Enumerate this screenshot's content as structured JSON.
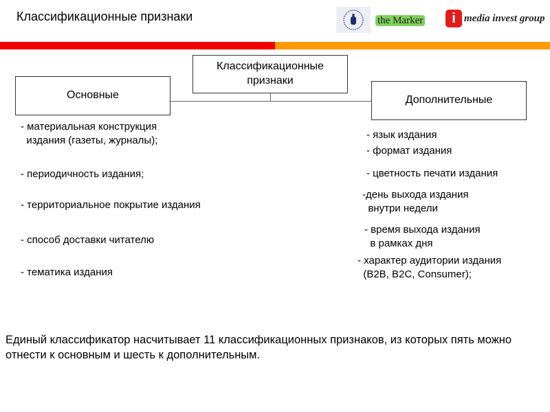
{
  "header": {
    "title": "Классификационные признаки"
  },
  "logos": {
    "marker": "the Marker",
    "mig_mark": "i",
    "mig": "media invest group"
  },
  "colors": {
    "bar_left": "#f20000",
    "bar_right": "#ff9a00"
  },
  "diagram": {
    "root": "Классификационные\nпризнаки",
    "left": "Основные",
    "right": "Дополнительные"
  },
  "left_items": [
    "- материальная конструкция\n  издания (газеты, журналы);",
    "- периодичность издания;",
    "- территориальное покрытие издания",
    "- способ доставки читателю",
    "- тематика издания"
  ],
  "right_items": [
    "- язык издания",
    "- формат издания",
    "- цветность печати издания",
    "-день выхода издания\n  внутри недели",
    "- время выхода издания\n  в рамках дня",
    "- характер аудитории издания\n  (B2B, B2C, Consumer);"
  ],
  "note": "Единый классификатор насчитывает 11 классификационных признаков, из которых пять можно отнести к основным и шесть к дополнительным."
}
